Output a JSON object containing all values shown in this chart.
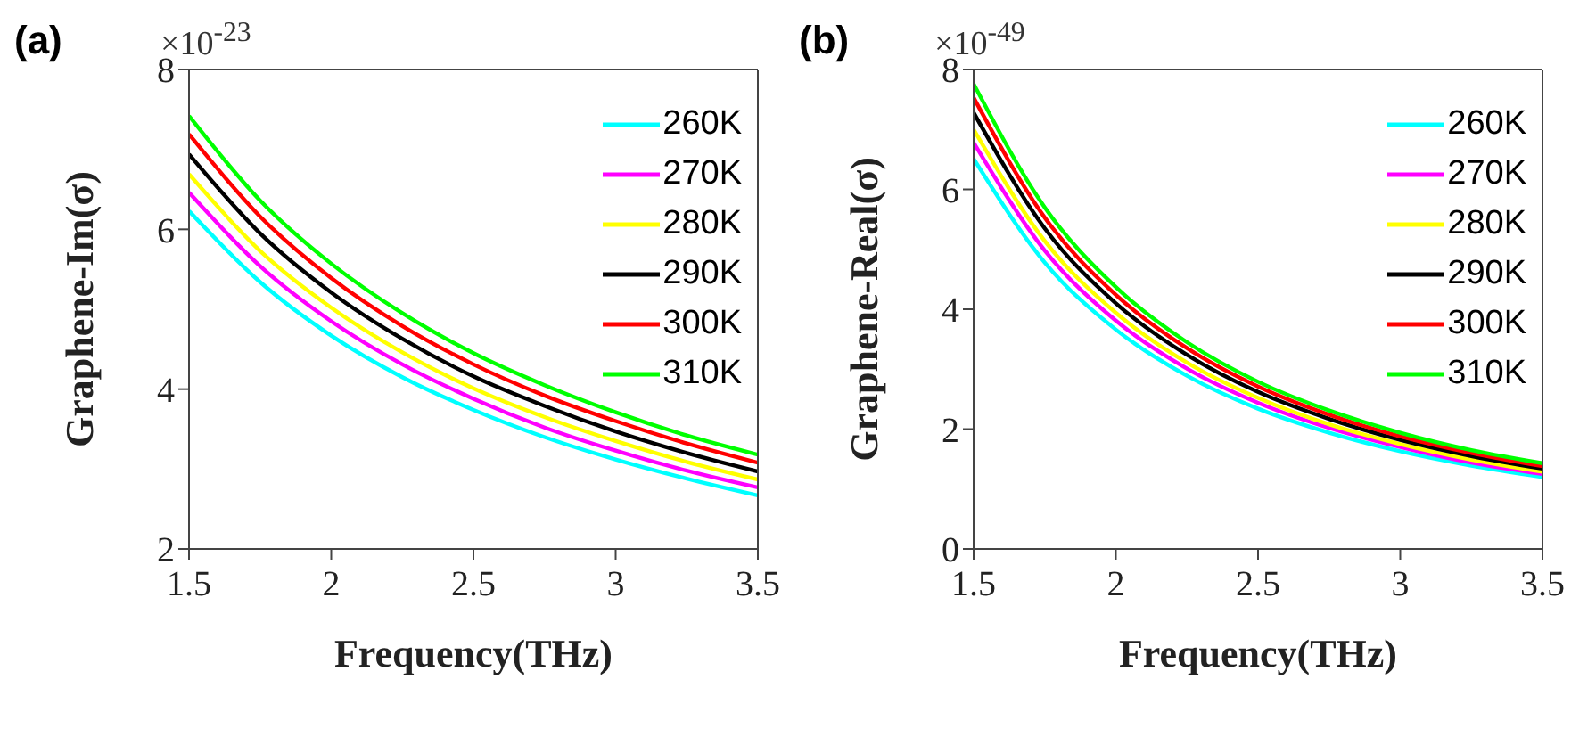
{
  "chart_data": [
    {
      "type": "line",
      "title": "(a)",
      "xlabel": "Frequency(THz)",
      "ylabel": "Graphene-Im(σ)",
      "annotations": [
        "×10$^{-23}$"
      ],
      "x": [
        1.5,
        1.75,
        2,
        2.25,
        2.5,
        2.75,
        3,
        3.25,
        3.5
      ],
      "xlim": [
        1.5,
        3.5
      ],
      "xticks": [
        1.5,
        2,
        2.5,
        3,
        3.5
      ],
      "ylim": [
        2,
        8
      ],
      "yticks": [
        2,
        4,
        6,
        8
      ],
      "legend": "top right",
      "marker": "none",
      "line_style": "solid",
      "series": [
        {
          "name": "260K",
          "color": "#00ffff",
          "values": [
            6.23,
            5.34,
            4.67,
            4.15,
            3.74,
            3.4,
            3.12,
            2.88,
            2.67
          ]
        },
        {
          "name": "270K",
          "color": "#ff00ff",
          "values": [
            6.46,
            5.54,
            4.85,
            4.31,
            3.88,
            3.52,
            3.23,
            2.98,
            2.77
          ]
        },
        {
          "name": "280K",
          "color": "#ffff00",
          "values": [
            6.69,
            5.73,
            5.02,
            4.46,
            4.01,
            3.65,
            3.35,
            3.09,
            2.87
          ]
        },
        {
          "name": "290K",
          "color": "#000000",
          "values": [
            6.94,
            5.95,
            5.21,
            4.63,
            4.16,
            3.79,
            3.47,
            3.2,
            2.97
          ]
        },
        {
          "name": "300K",
          "color": "#ff0000",
          "values": [
            7.19,
            6.16,
            5.39,
            4.79,
            4.31,
            3.92,
            3.6,
            3.32,
            3.08
          ]
        },
        {
          "name": "310K",
          "color": "#00ff00",
          "values": [
            7.42,
            6.36,
            5.57,
            4.95,
            4.45,
            4.05,
            3.71,
            3.42,
            3.18
          ]
        }
      ]
    },
    {
      "type": "line",
      "title": "(b)",
      "xlabel": "Frequency(THz)",
      "ylabel": "Graphene-Real(σ)",
      "annotations": [
        "×10$^{-49}$"
      ],
      "x": [
        1.5,
        1.75,
        2,
        2.25,
        2.5,
        2.75,
        3,
        3.25,
        3.5
      ],
      "xlim": [
        1.5,
        3.5
      ],
      "xticks": [
        1.5,
        2,
        2.5,
        3,
        3.5
      ],
      "ylim": [
        0,
        8
      ],
      "yticks": [
        0,
        2,
        4,
        6,
        8
      ],
      "legend": "top right",
      "marker": "none",
      "line_style": "solid",
      "series": [
        {
          "name": "260K",
          "color": "#00ffff",
          "values": [
            6.51,
            4.78,
            3.66,
            2.89,
            2.34,
            1.94,
            1.63,
            1.39,
            1.2
          ]
        },
        {
          "name": "270K",
          "color": "#ff00ff",
          "values": [
            6.78,
            4.98,
            3.81,
            3.01,
            2.44,
            2.02,
            1.7,
            1.44,
            1.25
          ]
        },
        {
          "name": "280K",
          "color": "#ffff00",
          "values": [
            7.0,
            5.14,
            3.94,
            3.11,
            2.52,
            2.08,
            1.75,
            1.49,
            1.29
          ]
        },
        {
          "name": "290K",
          "color": "#000000",
          "values": [
            7.28,
            5.35,
            4.1,
            3.24,
            2.62,
            2.17,
            1.82,
            1.55,
            1.34
          ]
        },
        {
          "name": "300K",
          "color": "#ff0000",
          "values": [
            7.53,
            5.53,
            4.24,
            3.35,
            2.71,
            2.24,
            1.88,
            1.6,
            1.38
          ]
        },
        {
          "name": "310K",
          "color": "#00ff00",
          "values": [
            7.76,
            5.7,
            4.37,
            3.45,
            2.79,
            2.31,
            1.94,
            1.65,
            1.43
          ]
        }
      ]
    }
  ]
}
